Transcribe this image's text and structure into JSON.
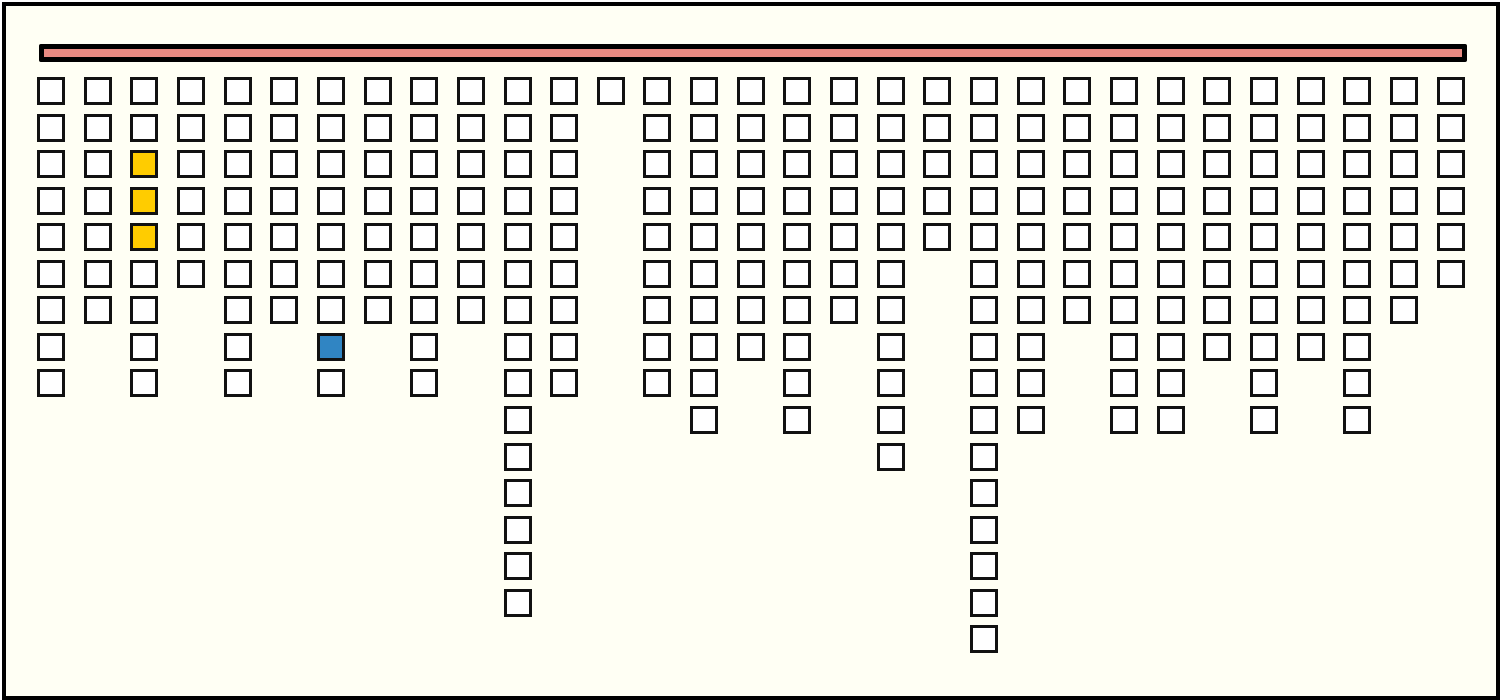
{
  "colors": {
    "background": "#fffff4",
    "bar": "#e88a82",
    "cell_empty": "#ffffff",
    "highlight_yellow": "#ffcc00",
    "highlight_blue": "#3085c3"
  },
  "columns": [
    {
      "height": 9
    },
    {
      "height": 7
    },
    {
      "height": 9,
      "highlights": [
        {
          "row": 2,
          "color": "yellow"
        },
        {
          "row": 3,
          "color": "yellow"
        },
        {
          "row": 4,
          "color": "yellow"
        }
      ]
    },
    {
      "height": 6
    },
    {
      "height": 9
    },
    {
      "height": 7
    },
    {
      "height": 9,
      "highlights": [
        {
          "row": 7,
          "color": "blue"
        }
      ]
    },
    {
      "height": 7
    },
    {
      "height": 9
    },
    {
      "height": 7
    },
    {
      "height": 15
    },
    {
      "height": 9
    },
    {
      "height": 1
    },
    {
      "height": 9
    },
    {
      "height": 10
    },
    {
      "height": 8
    },
    {
      "height": 10
    },
    {
      "height": 7
    },
    {
      "height": 11
    },
    {
      "height": 5
    },
    {
      "height": 16
    },
    {
      "height": 10
    },
    {
      "height": 7
    },
    {
      "height": 10
    },
    {
      "height": 10
    },
    {
      "height": 8
    },
    {
      "height": 10
    },
    {
      "height": 8
    },
    {
      "height": 10
    },
    {
      "height": 7
    },
    {
      "height": 6
    }
  ]
}
